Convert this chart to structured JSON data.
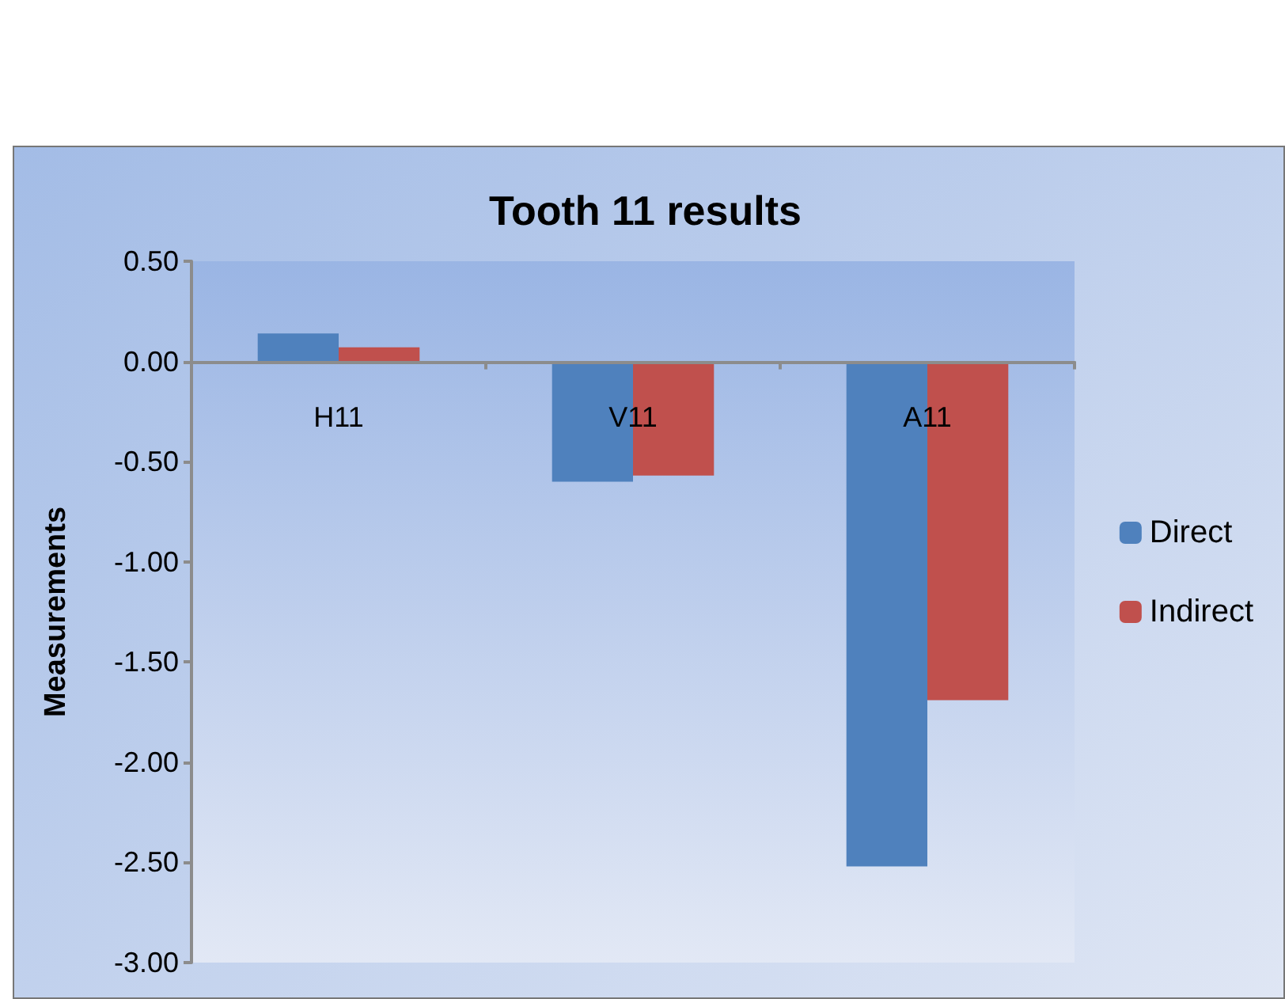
{
  "chart_data": {
    "type": "bar",
    "title": "Tooth 11 results",
    "ylabel": "Measurements",
    "categories": [
      "H11",
      "V11",
      "A11"
    ],
    "series": [
      {
        "name": "Direct",
        "color": "#4f81bd",
        "values": [
          0.14,
          -0.6,
          -2.52
        ]
      },
      {
        "name": "Indirect",
        "color": "#c0504d",
        "values": [
          0.07,
          -0.57,
          -1.69
        ]
      }
    ],
    "ylim": [
      -3,
      0.5
    ],
    "yticks": [
      {
        "value": 0.5,
        "label": "0.50"
      },
      {
        "value": 0,
        "label": "0.00"
      },
      {
        "value": -0.5,
        "label": "-0.50"
      },
      {
        "value": -1,
        "label": "-1.00"
      },
      {
        "value": -1.5,
        "label": "-1.50"
      },
      {
        "value": -2,
        "label": "-2.00"
      },
      {
        "value": -2.5,
        "label": "-2.50"
      },
      {
        "value": -3,
        "label": "-3.00"
      }
    ],
    "legend": "right"
  }
}
